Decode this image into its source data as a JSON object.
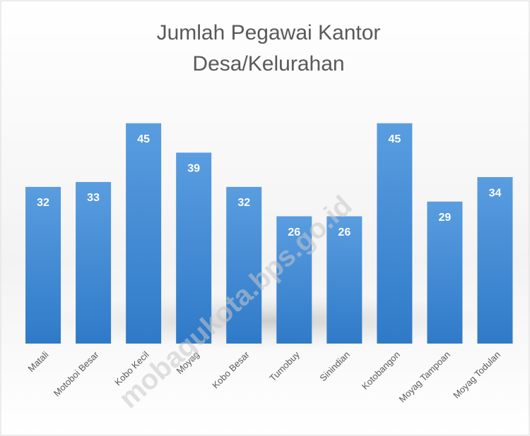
{
  "chart_data": {
    "type": "bar",
    "title": [
      "Jumlah Pegawai Kantor",
      "Desa/Kelurahan"
    ],
    "categories": [
      "Matali",
      "Motoboi Besar",
      "Kobo Kecil",
      "Moyag",
      "Kobo Besar",
      "Tumobuy",
      "Sinindian",
      "Kotobangon",
      "Moyag Tampoan",
      "Moyag Todulan"
    ],
    "values": [
      32,
      33,
      45,
      39,
      32,
      26,
      26,
      45,
      29,
      34
    ],
    "color": "#4a90d9",
    "ylim": [
      0,
      50
    ],
    "watermark": "mobagukota.bps.go.id"
  }
}
